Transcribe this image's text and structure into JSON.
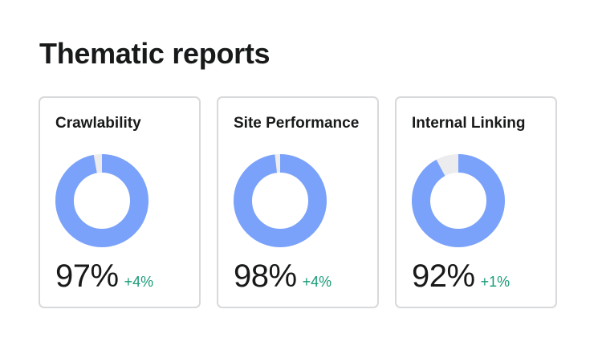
{
  "page": {
    "title": "Thematic reports"
  },
  "colors": {
    "donut_fill": "#7aa2fa",
    "donut_track": "#ececef",
    "delta_positive": "#1a9b78"
  },
  "reports": [
    {
      "name": "Crawlability",
      "value": "97%",
      "delta": "+4%",
      "percent": 97
    },
    {
      "name": "Site Performance",
      "value": "98%",
      "delta": "+4%",
      "percent": 98
    },
    {
      "name": "Internal Linking",
      "value": "92%",
      "delta": "+1%",
      "percent": 92
    }
  ]
}
